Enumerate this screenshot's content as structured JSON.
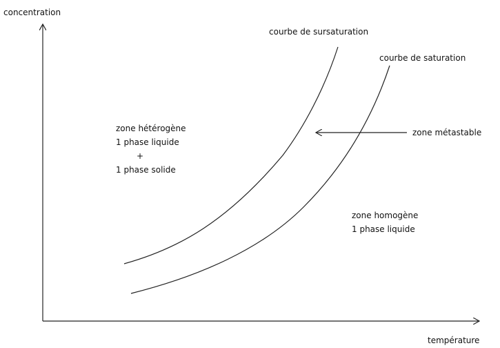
{
  "axes": {
    "y_label": "concentration",
    "x_label": "température"
  },
  "curves": [
    {
      "label": "courbe de sursaturation"
    },
    {
      "label": "courbe de saturation"
    }
  ],
  "zones": {
    "heterogeneous": {
      "lines": [
        "zone hétérogène",
        "1 phase liquide",
        "+",
        "1 phase solide"
      ]
    },
    "metastable": {
      "label": "zone métastable"
    },
    "homogeneous": {
      "lines": [
        "zone homogène",
        "1 phase liquide"
      ]
    }
  }
}
